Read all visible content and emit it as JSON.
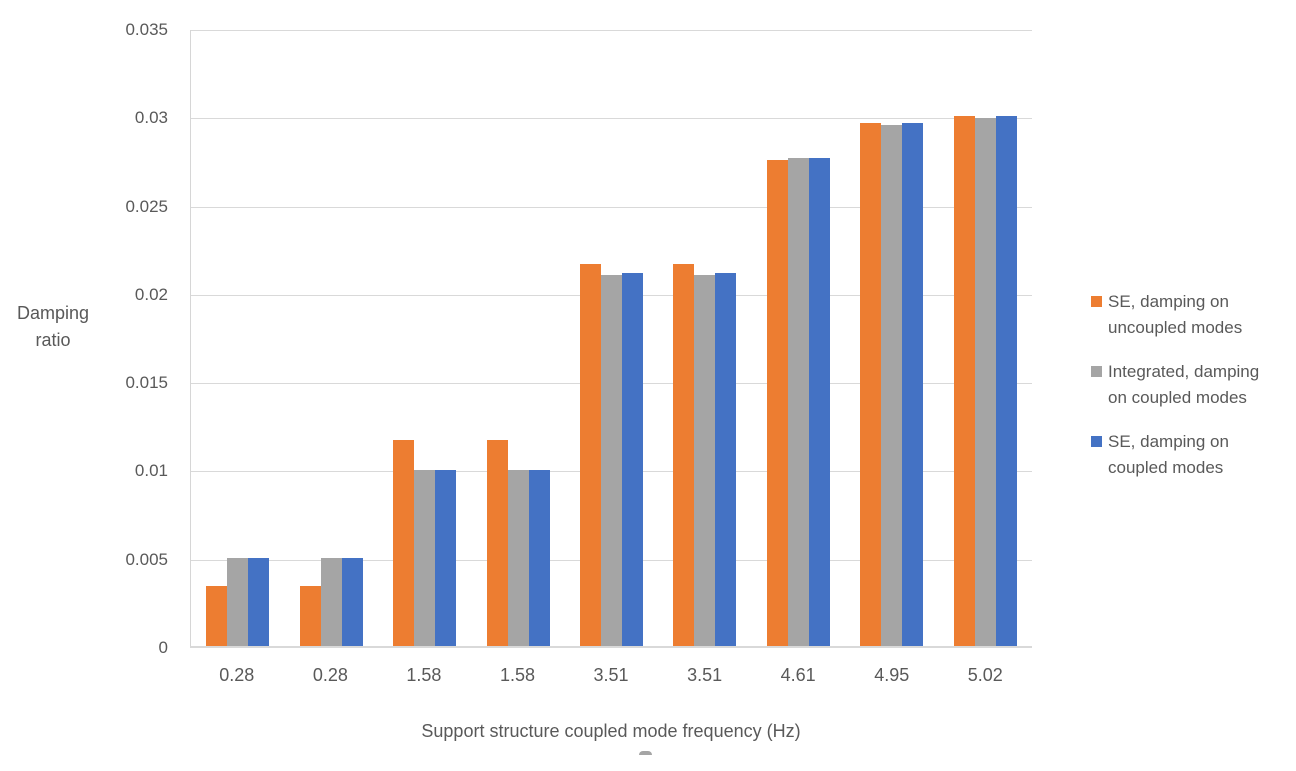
{
  "chart_data": {
    "type": "bar",
    "categories": [
      "0.28",
      "0.28",
      "1.58",
      "1.58",
      "3.51",
      "3.51",
      "4.61",
      "4.95",
      "5.02"
    ],
    "series": [
      {
        "name": "SE, damping on uncoupled modes",
        "name_lines": [
          "SE, damping on",
          "uncoupled modes"
        ],
        "color": "#ED7D31",
        "values": [
          0.0034,
          0.0034,
          0.0117,
          0.0117,
          0.0217,
          0.0217,
          0.0276,
          0.0297,
          0.0301
        ]
      },
      {
        "name": "Integrated, damping on coupled modes",
        "name_lines": [
          "Integrated, damping",
          "on coupled modes"
        ],
        "color": "#A5A5A5",
        "values": [
          0.005,
          0.005,
          0.01,
          0.01,
          0.0211,
          0.0211,
          0.0277,
          0.0296,
          0.03
        ]
      },
      {
        "name": "SE, damping on coupled modes",
        "name_lines": [
          "SE, damping on",
          "coupled modes"
        ],
        "color": "#4472C4",
        "values": [
          0.005,
          0.005,
          0.01,
          0.01,
          0.0212,
          0.0212,
          0.0277,
          0.0297,
          0.0301
        ]
      }
    ],
    "xlabel": "Support structure coupled mode frequency (Hz)",
    "ylabel": "Damping ratio",
    "ylim": [
      0,
      0.035
    ],
    "yticks": [
      "0",
      "0.005",
      "0.01",
      "0.015",
      "0.02",
      "0.025",
      "0.03",
      "0.035"
    ],
    "grid": true,
    "legend_position": "right",
    "colors": {
      "text": "#595959",
      "gridline": "#D9D9D9"
    }
  }
}
